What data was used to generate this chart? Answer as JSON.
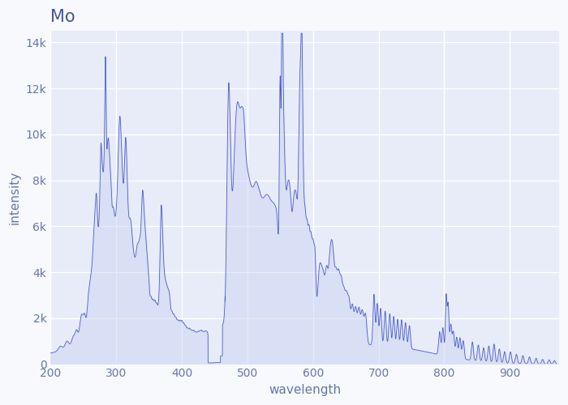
{
  "title": "Mo",
  "xlabel": "wavelength",
  "ylabel": "intensity",
  "xlim": [
    200,
    975
  ],
  "ylim": [
    0,
    14500
  ],
  "yticks": [
    0,
    2000,
    4000,
    6000,
    8000,
    10000,
    12000,
    14000
  ],
  "ytick_labels": [
    "0",
    "2k",
    "4k",
    "6k",
    "8k",
    "10k",
    "12k",
    "14k"
  ],
  "xticks": [
    200,
    300,
    400,
    500,
    600,
    700,
    800,
    900
  ],
  "line_color": "#5060cc",
  "fill_color": "#c8d0f0",
  "bg_color": "#e8ecf8",
  "grid_color": "#ffffff",
  "title_color": "#445599",
  "axis_label_color": "#6677aa"
}
